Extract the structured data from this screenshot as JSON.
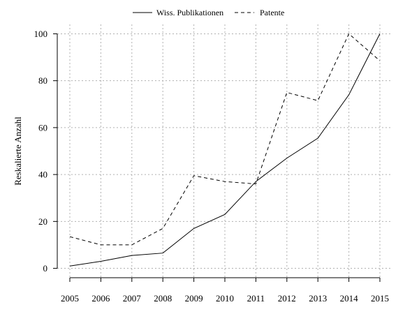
{
  "chart_data": {
    "type": "line",
    "title": "",
    "xlabel": "",
    "ylabel": "Reskalierte Anzahl",
    "x": [
      2005,
      2006,
      2007,
      2008,
      2009,
      2010,
      2011,
      2012,
      2013,
      2014,
      2015
    ],
    "xlim": [
      2005,
      2015
    ],
    "ylim": [
      -4,
      104
    ],
    "yticks": [
      0,
      20,
      40,
      60,
      80,
      100
    ],
    "grid": true,
    "legend_position": "top-center",
    "series": [
      {
        "name": "Wiss. Publikationen",
        "line_style": "solid",
        "color": "#000000",
        "values": [
          1,
          3,
          5.5,
          6.5,
          17,
          23,
          37,
          47,
          55.5,
          74,
          100
        ]
      },
      {
        "name": "Patente",
        "line_style": "dashed",
        "color": "#000000",
        "values": [
          13.5,
          10,
          10,
          17,
          39.5,
          37,
          36,
          75,
          71.5,
          100,
          88.5
        ]
      }
    ]
  }
}
